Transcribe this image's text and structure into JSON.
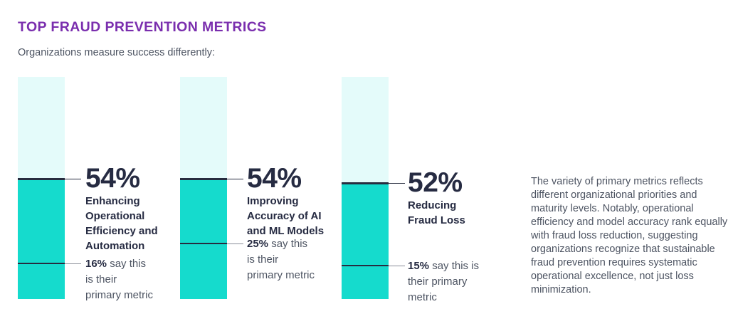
{
  "header": {
    "title": "TOP FRAUD PREVENTION METRICS",
    "subtitle": "Organizations measure success differently:"
  },
  "chart_data": {
    "type": "bar",
    "title": "TOP FRAUD PREVENTION METRICS",
    "subtitle": "Organizations measure success differently:",
    "unit": "percent",
    "ylim": [
      0,
      100
    ],
    "categories": [
      "Enhancing Operational Efficiency and Automation",
      "Improving Accuracy of AI and ML Models",
      "Reducing Fraud Loss"
    ],
    "values": [
      54,
      54,
      52
    ],
    "primary_metric_values": [
      16,
      25,
      15
    ],
    "bars": [
      {
        "value": 54,
        "value_label": "54%",
        "metric": "Enhancing Operational Efficiency and Automation",
        "metric_lines": [
          "Enhancing",
          "Operational",
          "Efficiency and",
          "Automation"
        ],
        "primary_value": 16,
        "primary_label": "16%",
        "primary_note": "16% say this is their primary metric",
        "primary_note_lines": [
          "16% say this",
          "is their",
          "primary metric"
        ]
      },
      {
        "value": 54,
        "value_label": "54%",
        "metric": "Improving Accuracy of AI and ML Models",
        "metric_lines": [
          "Improving",
          "Accuracy of AI",
          "and ML Models"
        ],
        "primary_value": 25,
        "primary_label": "25%",
        "primary_note": "25% say this is their primary metric",
        "primary_note_lines": [
          "25% say this",
          "is their",
          "primary metric"
        ]
      },
      {
        "value": 52,
        "value_label": "52%",
        "metric": "Reducing Fraud Loss",
        "metric_lines": [
          "Reducing",
          "Fraud Loss"
        ],
        "primary_value": 15,
        "primary_label": "15%",
        "primary_note": "15% say this is their primary metric",
        "primary_note_lines": [
          "15% say this is",
          "their primary",
          "metric"
        ]
      }
    ]
  },
  "commentary": "The variety of primary metrics reflects different organizational priorities and maturity levels. Notably, operational efficiency and model accuracy rank equally with fraud loss reduction, suggesting organizations recognize that sustainable fraud prevention requires systematic operational excellence, not just loss minimization.",
  "colors": {
    "title": "#7A2EAE",
    "bar_fill": "#15DBCD",
    "bar_track": "#E4FBFA",
    "navy_text": "#262B42",
    "gray_text": "#4D5462",
    "marker_line_dark": "#272C3F",
    "marker_line_gray": "#8A8E99"
  }
}
